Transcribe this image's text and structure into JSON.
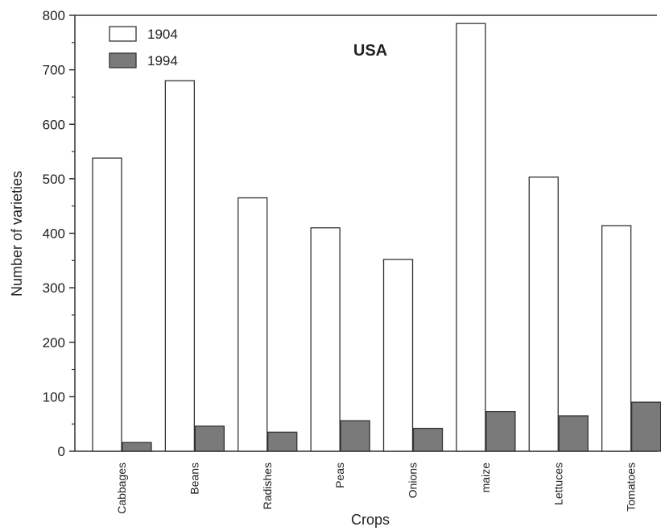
{
  "chart_data": {
    "type": "bar",
    "categories": [
      "Cabbages",
      "Beans",
      "Radishes",
      "Peas",
      "Onions",
      "maize",
      "Lettuces",
      "Tomatoes"
    ],
    "series": [
      {
        "name": "1904",
        "values": [
          538,
          680,
          465,
          410,
          352,
          785,
          503,
          414
        ],
        "color": "#ffffff"
      },
      {
        "name": "1994",
        "values": [
          16,
          46,
          35,
          56,
          42,
          73,
          65,
          90
        ],
        "color": "#7a7a7a"
      }
    ],
    "title": "",
    "annotation": "USA",
    "xlabel": "Crops",
    "ylabel": "Number of varieties",
    "ylim": [
      0,
      800
    ],
    "yticks": [
      0,
      100,
      200,
      300,
      400,
      500,
      600,
      700,
      800
    ],
    "grid": false,
    "legend_position": "top-left"
  }
}
